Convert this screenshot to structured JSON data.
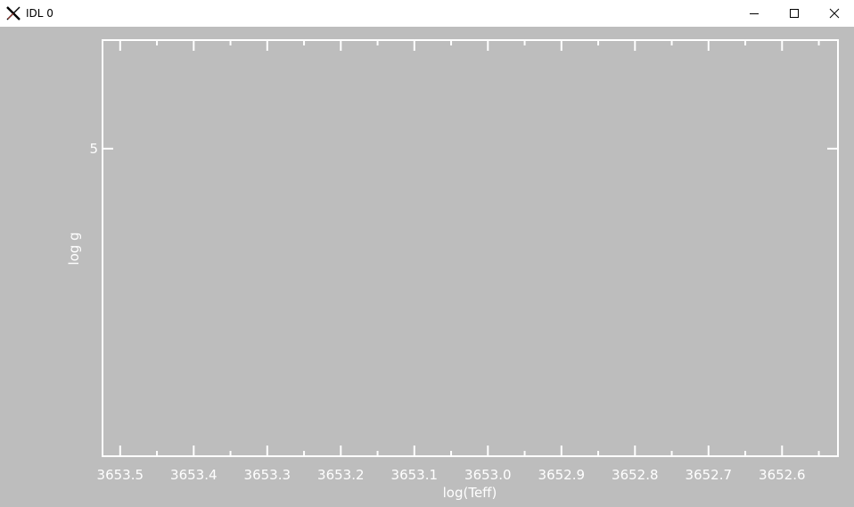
{
  "window": {
    "title": "IDL 0",
    "app_icon": "x11-icon",
    "controls": [
      "minimize-icon",
      "maximize-icon",
      "close-icon"
    ]
  },
  "colors": {
    "plot_background": "#bdbdbd",
    "axis_color": "#ffffff",
    "titlebar": "#ffffff"
  },
  "chart_data": {
    "type": "scatter",
    "title": "",
    "xlabel": "log(Teff)",
    "ylabel": "log g",
    "x_reversed": true,
    "xlim": [
      3653.524,
      3652.524
    ],
    "ylim": [
      4.0,
      5.353
    ],
    "x_tick_labels": [
      "3653.5",
      "3653.4",
      "3653.3",
      "3653.2",
      "3653.1",
      "3653.0",
      "3652.9",
      "3652.8",
      "3652.7",
      "3652.6"
    ],
    "x_major_ticks": [
      3653.5,
      3653.4,
      3653.3,
      3653.2,
      3653.1,
      3653.0,
      3652.9,
      3652.8,
      3652.7,
      3652.6
    ],
    "y_tick_labels": [
      "5"
    ],
    "y_major_ticks": [
      5
    ],
    "series": [],
    "grid": false
  }
}
